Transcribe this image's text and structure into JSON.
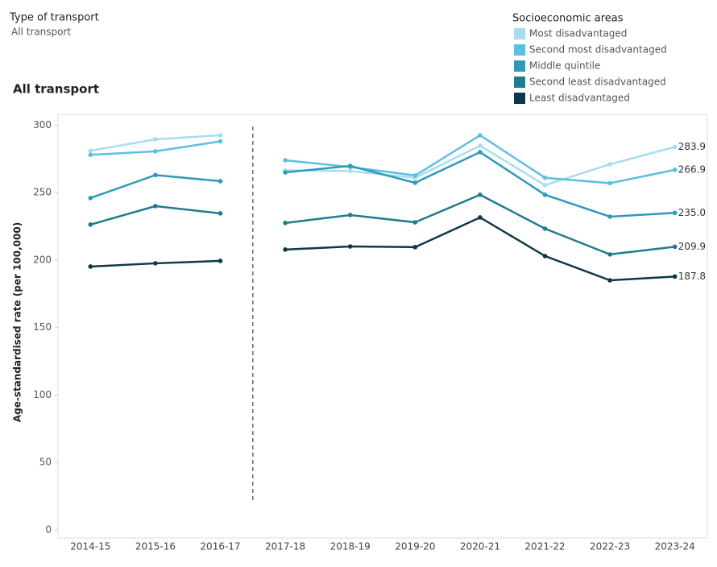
{
  "filter": {
    "label": "Type of transport",
    "value": "All transport"
  },
  "chart_data": {
    "type": "line",
    "title": "All transport",
    "y_label": "Age-standardised rate (per 100,000)",
    "legend_title": "Socioeconomic areas",
    "legend": "top-right",
    "categories": [
      "2014-15",
      "2015-16",
      "2016-17",
      "2017-18",
      "2018-19",
      "2019-20",
      "2020-21",
      "2021-22",
      "2022-23",
      "2023-24"
    ],
    "break_after": "2016-17",
    "ylim": [
      -6,
      308
    ],
    "yticks": [
      0,
      50,
      100,
      150,
      200,
      250,
      300
    ],
    "series": [
      {
        "name": "Most disadvantaged",
        "color": "#a9dcf0",
        "values": [
          281,
          289.5,
          292.5,
          266.5,
          266,
          261,
          284.8,
          255.5,
          271,
          283.9
        ],
        "value_labels": [
          null,
          null,
          null,
          null,
          null,
          null,
          null,
          null,
          null,
          "283.9"
        ]
      },
      {
        "name": "Second most disadvantaged",
        "color": "#5dbfe0",
        "values": [
          278,
          280.6,
          288,
          274,
          269,
          262.7,
          292.5,
          261,
          257,
          266.9
        ],
        "value_labels": [
          null,
          null,
          null,
          null,
          null,
          null,
          null,
          null,
          null,
          "266.9"
        ]
      },
      {
        "name": "Middle quintile",
        "color": "#2f9ab8",
        "values": [
          246,
          263,
          258.5,
          265,
          269.8,
          257.3,
          280,
          248.4,
          232.2,
          235.0
        ],
        "value_labels": [
          null,
          null,
          null,
          null,
          null,
          null,
          null,
          null,
          null,
          "235.0"
        ]
      },
      {
        "name": "Second least disadvantaged",
        "color": "#217b8e",
        "values": [
          226.3,
          240,
          234.6,
          227.5,
          233.4,
          228,
          248.4,
          223.3,
          204.2,
          209.9
        ],
        "value_labels": [
          null,
          null,
          null,
          null,
          null,
          null,
          null,
          null,
          null,
          "209.9"
        ]
      },
      {
        "name": "Least disadvantaged",
        "color": "#0e3849",
        "values": [
          195.2,
          197.6,
          199.4,
          207.8,
          210.1,
          209.6,
          231.6,
          203,
          185,
          187.8
        ],
        "value_labels": [
          null,
          null,
          null,
          null,
          null,
          null,
          null,
          null,
          null,
          "187.8"
        ]
      }
    ]
  }
}
